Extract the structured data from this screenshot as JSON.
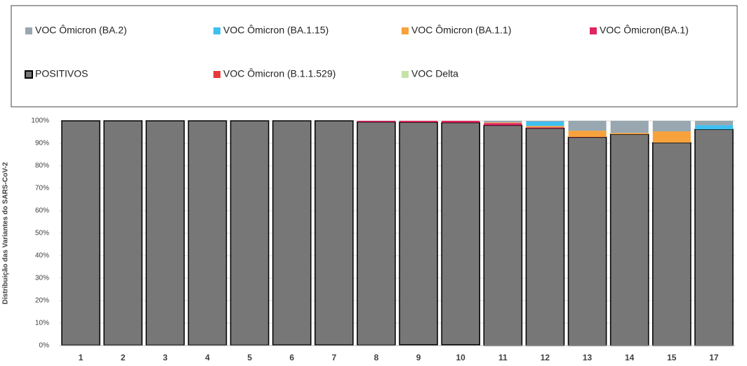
{
  "chart_data": {
    "type": "stacked_bar",
    "y_label": "Distribuição das Variantes do SARS-CoV-2",
    "categories": [
      "1",
      "2",
      "3",
      "4",
      "5",
      "6",
      "7",
      "8",
      "9",
      "10",
      "11",
      "12",
      "13",
      "14",
      "15",
      "17"
    ],
    "series": [
      {
        "name": "VOC Ômicron (BA.2)",
        "color": "#98a7b0",
        "values": [
          0,
          0,
          0,
          0,
          0,
          0,
          0,
          0,
          0,
          0,
          0.7,
          0.3,
          4.4,
          5.4,
          4.7,
          1.9
        ]
      },
      {
        "name": "VOC Ômicron (BA.1.15)",
        "color": "#3fc0f0",
        "values": [
          0,
          0,
          0,
          0,
          0,
          0,
          0,
          0,
          0,
          0,
          0,
          2.0,
          0,
          0,
          0,
          1.9
        ]
      },
      {
        "name": "VOC Ômicron (BA.1.1)",
        "color": "#f7a23c",
        "values": [
          0,
          0,
          0,
          0,
          0,
          0,
          0,
          0,
          0,
          0,
          0.3,
          0.6,
          2.8,
          0.6,
          5.0,
          0
        ]
      },
      {
        "name": "VOC Ômicron(BA.1)",
        "color": "#e0245e",
        "values": [
          0,
          0,
          0,
          0,
          0,
          0,
          0,
          0.5,
          0.6,
          0.8,
          1.0,
          0.4,
          0.1,
          0,
          0,
          0
        ]
      },
      {
        "name": "POSITIVOS",
        "color": "#777777",
        "values": [
          99.8,
          99.8,
          99.8,
          99.8,
          99.8,
          99.7,
          99.7,
          99.3,
          99.0,
          98.8,
          98.0,
          96.7,
          92.7,
          94.0,
          90.3,
          96.2
        ]
      },
      {
        "name": "VOC Ômicron (B.1.1.529)",
        "color": "#e8393a",
        "values": [
          0,
          0,
          0,
          0,
          0,
          0,
          0,
          0,
          0,
          0,
          0,
          0,
          0,
          0,
          0,
          0
        ]
      },
      {
        "name": "VOC Delta",
        "color": "#c7e2a8",
        "values": [
          0.2,
          0.2,
          0.2,
          0.2,
          0.2,
          0.3,
          0.3,
          0.2,
          0.4,
          0.4,
          0,
          0,
          0,
          0,
          0,
          0
        ]
      }
    ],
    "ylim": [
      0,
      100
    ],
    "yticks": [
      {
        "value": 0,
        "label": "0%"
      },
      {
        "value": 10,
        "label": "10%"
      },
      {
        "value": 20,
        "label": "20%"
      },
      {
        "value": 30,
        "label": "30%"
      },
      {
        "value": 40,
        "label": "40%"
      },
      {
        "value": 50,
        "label": "50%"
      },
      {
        "value": 60,
        "label": "60%"
      },
      {
        "value": 70,
        "label": "70%"
      },
      {
        "value": 80,
        "label": "80%"
      },
      {
        "value": 90,
        "label": "90%"
      },
      {
        "value": 100,
        "label": "100%"
      }
    ],
    "grid": true
  }
}
